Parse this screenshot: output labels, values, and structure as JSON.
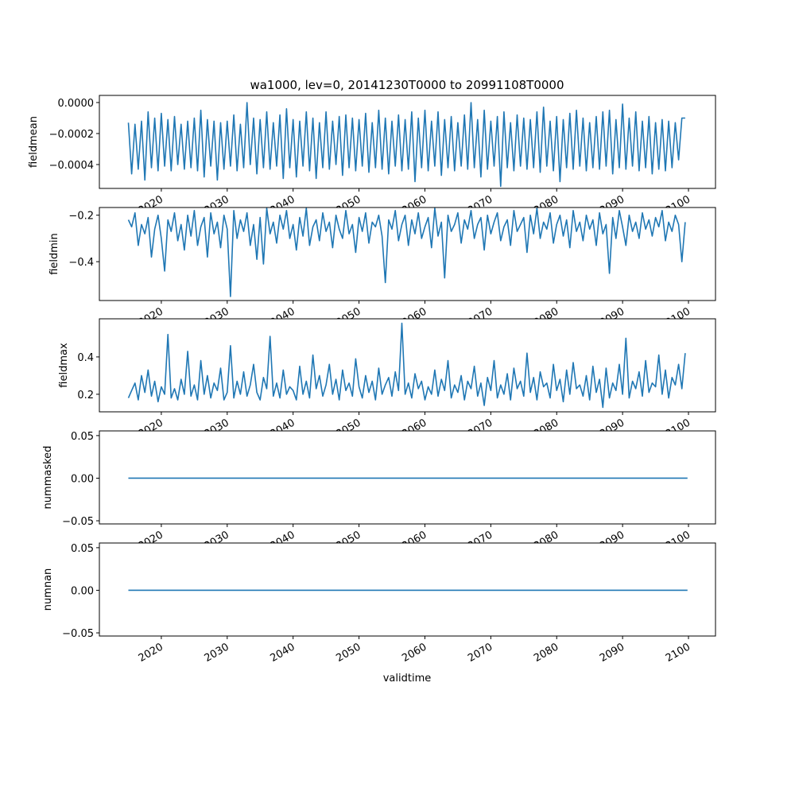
{
  "chart_data": {
    "type": "line",
    "title": "wa1000, lev=0, 20141230T0000 to 20991108T0000",
    "xlabel": "validtime",
    "line_color": "#1f77b4",
    "x_start": 2015.0,
    "x_step": 0.5,
    "xlim": [
      2010.6,
      2104.1
    ],
    "x_ticks": [
      2020,
      2030,
      2040,
      2050,
      2060,
      2070,
      2080,
      2090,
      2100
    ],
    "x_tick_labels": [
      "2020",
      "2030",
      "2040",
      "2050",
      "2060",
      "2070",
      "2080",
      "2090",
      "2100"
    ],
    "panels": [
      {
        "ylabel": "fieldmean",
        "ylim": [
          -0.000554,
          4.6e-05
        ],
        "y_ticks": [
          0,
          -0.0002,
          -0.0004
        ],
        "y_tick_labels": [
          "0.0000",
          "−0.0002",
          "−0.0004"
        ],
        "values": [
          -0.00013,
          -0.00046,
          -0.00014,
          -0.00043,
          -0.00012,
          -0.0005,
          -6e-05,
          -0.00042,
          -0.0001,
          -0.00044,
          -7e-05,
          -0.00041,
          -0.00011,
          -0.00044,
          -9e-05,
          -0.0004,
          -0.00014,
          -0.00043,
          -0.00012,
          -0.00042,
          -0.0001,
          -0.00044,
          -5e-05,
          -0.00048,
          -0.00011,
          -0.00041,
          -0.00012,
          -0.0005,
          -0.00013,
          -0.00043,
          -0.00012,
          -0.00041,
          -8e-05,
          -0.00044,
          -0.00014,
          -0.00042,
          0.0,
          -0.0004,
          -0.0001,
          -0.00046,
          -0.00011,
          -0.00042,
          -6e-05,
          -0.00043,
          -0.00013,
          -0.00041,
          -8e-05,
          -0.00049,
          -4e-05,
          -0.00042,
          -0.00011,
          -0.00048,
          -0.00012,
          -0.00041,
          -6e-05,
          -0.00044,
          -0.0001,
          -0.00049,
          -0.00013,
          -0.00042,
          -6e-05,
          -0.00043,
          -0.00012,
          -0.0004,
          -9e-05,
          -0.00047,
          -8e-05,
          -0.00042,
          -0.0001,
          -0.00044,
          -0.00011,
          -0.00041,
          -7e-05,
          -0.00045,
          -0.00013,
          -0.00042,
          -5e-05,
          -0.00043,
          -0.0001,
          -0.00046,
          -0.00012,
          -0.00041,
          -8e-05,
          -0.00044,
          -0.00011,
          -0.00043,
          -6e-05,
          -0.00051,
          -0.0001,
          -0.00042,
          -5e-05,
          -0.00044,
          -0.00012,
          -0.00041,
          -6e-05,
          -0.00047,
          -0.00011,
          -0.00042,
          -9e-05,
          -0.00044,
          -0.00013,
          -0.00041,
          -8e-05,
          -0.00043,
          0.0,
          -0.00042,
          -0.00011,
          -0.00048,
          -5e-05,
          -0.00043,
          -0.00012,
          -0.00041,
          -9e-05,
          -0.00054,
          -6e-05,
          -0.00042,
          -0.00013,
          -0.00044,
          -8e-05,
          -0.00041,
          -0.0001,
          -0.00043,
          -0.00011,
          -0.00042,
          -6e-05,
          -0.00045,
          -3e-05,
          -0.00041,
          -0.00012,
          -0.00044,
          -9e-05,
          -0.00051,
          -0.00011,
          -0.00042,
          -7e-05,
          -0.00043,
          -5e-05,
          -0.00041,
          -0.0001,
          -0.00044,
          -0.00013,
          -0.00042,
          -9e-05,
          -0.00043,
          -6e-05,
          -0.00041,
          -5e-05,
          -0.00046,
          -0.00011,
          -0.00042,
          -1e-05,
          -0.00043,
          -0.0001,
          -0.00041,
          -6e-05,
          -0.00044,
          -0.00012,
          -0.00042,
          -9e-05,
          -0.00046,
          -0.00013,
          -0.00043,
          -0.00011,
          -0.00044,
          -0.00012,
          -0.00042,
          -0.00013,
          -0.00037,
          -0.0001,
          -0.0001
        ]
      },
      {
        "ylabel": "fieldmin",
        "ylim": [
          -0.567,
          -0.167
        ],
        "y_ticks": [
          -0.2,
          -0.4
        ],
        "y_tick_labels": [
          "−0.2",
          "−0.4"
        ],
        "values": [
          -0.22,
          -0.25,
          -0.19,
          -0.33,
          -0.24,
          -0.28,
          -0.21,
          -0.38,
          -0.26,
          -0.2,
          -0.3,
          -0.44,
          -0.22,
          -0.27,
          -0.19,
          -0.31,
          -0.24,
          -0.35,
          -0.2,
          -0.29,
          -0.18,
          -0.33,
          -0.25,
          -0.21,
          -0.38,
          -0.19,
          -0.28,
          -0.23,
          -0.34,
          -0.2,
          -0.26,
          -0.55,
          -0.18,
          -0.3,
          -0.22,
          -0.27,
          -0.19,
          -0.33,
          -0.24,
          -0.39,
          -0.21,
          -0.41,
          -0.17,
          -0.28,
          -0.23,
          -0.32,
          -0.2,
          -0.26,
          -0.18,
          -0.3,
          -0.24,
          -0.35,
          -0.21,
          -0.29,
          -0.17,
          -0.33,
          -0.25,
          -0.22,
          -0.31,
          -0.19,
          -0.27,
          -0.23,
          -0.34,
          -0.2,
          -0.26,
          -0.3,
          -0.18,
          -0.28,
          -0.24,
          -0.36,
          -0.21,
          -0.27,
          -0.19,
          -0.32,
          -0.23,
          -0.25,
          -0.2,
          -0.29,
          -0.49,
          -0.22,
          -0.26,
          -0.18,
          -0.31,
          -0.24,
          -0.2,
          -0.33,
          -0.22,
          -0.28,
          -0.19,
          -0.3,
          -0.25,
          -0.21,
          -0.34,
          -0.17,
          -0.29,
          -0.23,
          -0.47,
          -0.2,
          -0.27,
          -0.24,
          -0.19,
          -0.32,
          -0.22,
          -0.26,
          -0.18,
          -0.3,
          -0.24,
          -0.21,
          -0.35,
          -0.2,
          -0.28,
          -0.23,
          -0.19,
          -0.31,
          -0.25,
          -0.22,
          -0.33,
          -0.18,
          -0.27,
          -0.24,
          -0.21,
          -0.36,
          -0.2,
          -0.28,
          -0.17,
          -0.3,
          -0.23,
          -0.26,
          -0.19,
          -0.32,
          -0.24,
          -0.2,
          -0.29,
          -0.22,
          -0.34,
          -0.18,
          -0.27,
          -0.23,
          -0.31,
          -0.2,
          -0.26,
          -0.22,
          -0.33,
          -0.19,
          -0.28,
          -0.24,
          -0.45,
          -0.21,
          -0.3,
          -0.18,
          -0.25,
          -0.33,
          -0.2,
          -0.27,
          -0.23,
          -0.3,
          -0.19,
          -0.26,
          -0.22,
          -0.29,
          -0.21,
          -0.25,
          -0.18,
          -0.31,
          -0.23,
          -0.27,
          -0.2,
          -0.24,
          -0.4,
          -0.23
        ]
      },
      {
        "ylabel": "fieldmax",
        "ylim": [
          0.106,
          0.604
        ],
        "y_ticks": [
          0.4,
          0.2
        ],
        "y_tick_labels": [
          "0.4",
          "0.2"
        ],
        "values": [
          0.18,
          0.22,
          0.26,
          0.17,
          0.3,
          0.21,
          0.33,
          0.19,
          0.27,
          0.16,
          0.24,
          0.2,
          0.52,
          0.18,
          0.23,
          0.17,
          0.28,
          0.2,
          0.43,
          0.19,
          0.25,
          0.17,
          0.38,
          0.2,
          0.3,
          0.18,
          0.26,
          0.22,
          0.34,
          0.17,
          0.21,
          0.46,
          0.18,
          0.27,
          0.2,
          0.32,
          0.19,
          0.25,
          0.36,
          0.21,
          0.17,
          0.29,
          0.23,
          0.51,
          0.19,
          0.26,
          0.18,
          0.33,
          0.2,
          0.24,
          0.22,
          0.17,
          0.35,
          0.2,
          0.27,
          0.18,
          0.41,
          0.23,
          0.3,
          0.19,
          0.25,
          0.36,
          0.2,
          0.28,
          0.17,
          0.33,
          0.22,
          0.26,
          0.19,
          0.39,
          0.24,
          0.18,
          0.3,
          0.21,
          0.27,
          0.17,
          0.34,
          0.2,
          0.25,
          0.29,
          0.19,
          0.32,
          0.22,
          0.58,
          0.2,
          0.26,
          0.18,
          0.31,
          0.23,
          0.27,
          0.17,
          0.24,
          0.2,
          0.33,
          0.19,
          0.28,
          0.22,
          0.38,
          0.18,
          0.25,
          0.21,
          0.3,
          0.17,
          0.27,
          0.23,
          0.35,
          0.19,
          0.26,
          0.14,
          0.29,
          0.22,
          0.38,
          0.18,
          0.25,
          0.2,
          0.31,
          0.17,
          0.34,
          0.23,
          0.27,
          0.19,
          0.42,
          0.21,
          0.29,
          0.17,
          0.32,
          0.24,
          0.26,
          0.18,
          0.36,
          0.22,
          0.28,
          0.16,
          0.33,
          0.2,
          0.37,
          0.23,
          0.25,
          0.19,
          0.3,
          0.17,
          0.35,
          0.21,
          0.28,
          0.13,
          0.34,
          0.18,
          0.26,
          0.22,
          0.36,
          0.2,
          0.5,
          0.18,
          0.27,
          0.23,
          0.32,
          0.19,
          0.38,
          0.21,
          0.26,
          0.24,
          0.41,
          0.2,
          0.33,
          0.18,
          0.29,
          0.25,
          0.36,
          0.23,
          0.42
        ]
      },
      {
        "ylabel": "nummasked",
        "ylim": [
          -0.0537,
          0.0555
        ],
        "y_ticks": [
          0.05,
          0.0,
          -0.05
        ],
        "y_tick_labels": [
          "0.05",
          "0.00",
          "−0.05"
        ],
        "constant_value": 0.0,
        "x_end": 2099.85
      },
      {
        "ylabel": "numnan",
        "ylim": [
          -0.0537,
          0.0555
        ],
        "y_ticks": [
          0.05,
          0.0,
          -0.05
        ],
        "y_tick_labels": [
          "0.05",
          "0.00",
          "−0.05"
        ],
        "constant_value": 0.0,
        "x_end": 2099.85
      }
    ]
  }
}
